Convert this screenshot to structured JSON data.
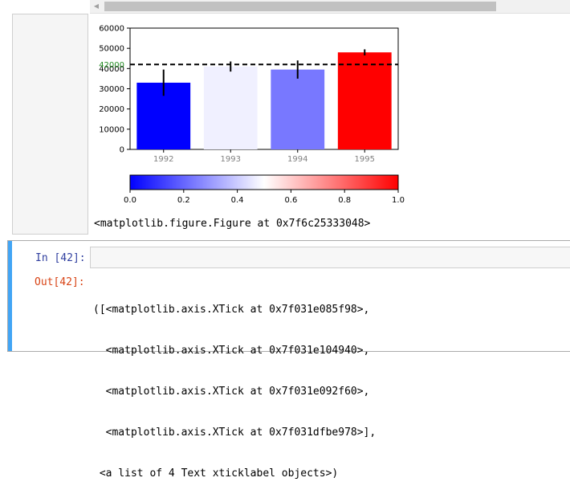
{
  "prev_cell": {
    "figure_repr": "<matplotlib.figure.Figure at 0x7f6c25333048>"
  },
  "chart_data": [
    {
      "type": "bar",
      "categories": [
        "1992",
        "1993",
        "1994",
        "1995"
      ],
      "values": [
        33000,
        41000,
        39500,
        48000
      ],
      "errors": [
        6500,
        2500,
        4500,
        1500
      ],
      "colors": [
        "#0000ff",
        "#f0f0ff",
        "#7878ff",
        "#ff0000"
      ],
      "reference_line": {
        "value": 42000,
        "label": "42000",
        "style": "dashed",
        "label_color": "#228b22"
      },
      "yticks": [
        "0",
        "10000",
        "20000",
        "30000",
        "40000",
        "50000",
        "60000"
      ],
      "ylim": [
        0,
        60000
      ]
    },
    {
      "type": "colorbar",
      "colormap": "bwr",
      "ticks": [
        "0.0",
        "0.2",
        "0.4",
        "0.6",
        "0.8",
        "1.0"
      ],
      "range": [
        0,
        1
      ]
    }
  ],
  "cell": {
    "in_prompt": "In [42]:",
    "out_prompt": "Out[42]:",
    "input_value": "",
    "output_lines": [
      "([<matplotlib.axis.XTick at 0x7f031e085f98>,",
      "  <matplotlib.axis.XTick at 0x7f031e104940>,",
      "  <matplotlib.axis.XTick at 0x7f031e092f60>,",
      "  <matplotlib.axis.XTick at 0x7f031dfbe978>],",
      " <a list of 4 Text xticklabel objects>)"
    ]
  },
  "colors": {
    "selected_bar": "#42a5f5",
    "in_prompt": "#303f9f",
    "out_prompt": "#d84315"
  }
}
